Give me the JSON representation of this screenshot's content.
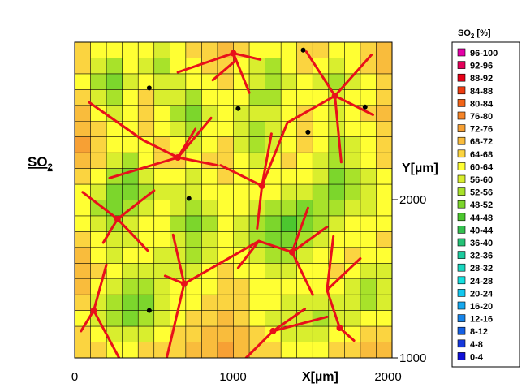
{
  "chart_data": {
    "type": "heatmap",
    "quantity_label": "SO",
    "quantity_subscript": "2",
    "xlabel": "X[µm]",
    "ylabel": "Y[µm]",
    "xlim": [
      0,
      2000
    ],
    "ylim": [
      1000,
      3000
    ],
    "x_ticks": [
      "0",
      "1000",
      "2000"
    ],
    "y_ticks": [
      "2000",
      "1000"
    ],
    "legend_title_prefix": "SO",
    "legend_title_sub": "2",
    "legend_title_unit": " [%]",
    "legend": [
      {
        "label": "96-100",
        "color": "#e400a8"
      },
      {
        "label": "92-96",
        "color": "#e4005a"
      },
      {
        "label": "88-92",
        "color": "#e80018"
      },
      {
        "label": "84-88",
        "color": "#ee3c10"
      },
      {
        "label": "80-84",
        "color": "#f26418"
      },
      {
        "label": "76-80",
        "color": "#f58428"
      },
      {
        "label": "72-76",
        "color": "#f7a034"
      },
      {
        "label": "68-72",
        "color": "#f9bc3c"
      },
      {
        "label": "64-68",
        "color": "#fbd440"
      },
      {
        "label": "60-64",
        "color": "#ffff33"
      },
      {
        "label": "56-60",
        "color": "#d9ee2e"
      },
      {
        "label": "52-56",
        "color": "#a8e22a"
      },
      {
        "label": "48-52",
        "color": "#7cd62c"
      },
      {
        "label": "44-48",
        "color": "#4cc72f"
      },
      {
        "label": "40-44",
        "color": "#33c04f"
      },
      {
        "label": "36-40",
        "color": "#24c276"
      },
      {
        "label": "32-36",
        "color": "#1ccb9e"
      },
      {
        "label": "28-32",
        "color": "#19d7c0"
      },
      {
        "label": "24-28",
        "color": "#14e0e0"
      },
      {
        "label": "20-24",
        "color": "#13c8ef"
      },
      {
        "label": "16-20",
        "color": "#16a8ef"
      },
      {
        "label": "12-16",
        "color": "#1684ea"
      },
      {
        "label": "8-12",
        "color": "#1660e4"
      },
      {
        "label": "4-8",
        "color": "#1638dc"
      },
      {
        "label": "0-4",
        "color": "#1010d8"
      }
    ],
    "grid_x_count": 20,
    "grid_y_count": 20,
    "grid_values": [
      [
        66,
        62,
        60,
        63,
        61,
        58,
        62,
        64,
        66,
        69,
        66,
        62,
        60,
        62,
        66,
        64,
        61,
        63,
        66,
        70
      ],
      [
        64,
        58,
        54,
        60,
        58,
        55,
        60,
        62,
        64,
        66,
        63,
        58,
        55,
        60,
        64,
        60,
        57,
        61,
        64,
        68
      ],
      [
        62,
        55,
        50,
        58,
        60,
        56,
        58,
        60,
        62,
        64,
        62,
        56,
        52,
        58,
        61,
        57,
        53,
        58,
        62,
        66
      ],
      [
        64,
        58,
        54,
        60,
        64,
        58,
        56,
        55,
        60,
        62,
        60,
        55,
        54,
        60,
        63,
        60,
        56,
        60,
        63,
        67
      ],
      [
        68,
        62,
        58,
        62,
        66,
        60,
        54,
        50,
        56,
        60,
        58,
        56,
        58,
        62,
        65,
        63,
        58,
        62,
        64,
        68
      ],
      [
        70,
        64,
        60,
        63,
        64,
        62,
        58,
        55,
        60,
        62,
        56,
        52,
        56,
        60,
        64,
        62,
        56,
        60,
        62,
        66
      ],
      [
        72,
        66,
        62,
        60,
        62,
        64,
        62,
        58,
        62,
        64,
        58,
        54,
        58,
        62,
        64,
        60,
        54,
        58,
        62,
        65
      ],
      [
        70,
        64,
        58,
        55,
        60,
        66,
        64,
        60,
        64,
        66,
        62,
        58,
        60,
        64,
        62,
        58,
        52,
        56,
        60,
        64
      ],
      [
        66,
        60,
        54,
        50,
        56,
        62,
        62,
        58,
        62,
        64,
        62,
        60,
        62,
        62,
        60,
        56,
        50,
        54,
        58,
        62
      ],
      [
        62,
        56,
        50,
        48,
        54,
        58,
        58,
        56,
        60,
        62,
        62,
        60,
        60,
        58,
        56,
        54,
        50,
        52,
        56,
        60
      ],
      [
        60,
        54,
        50,
        52,
        58,
        60,
        56,
        52,
        58,
        62,
        60,
        56,
        54,
        52,
        50,
        52,
        54,
        56,
        58,
        62
      ],
      [
        62,
        56,
        54,
        56,
        62,
        62,
        54,
        48,
        54,
        60,
        58,
        52,
        48,
        46,
        48,
        54,
        58,
        60,
        60,
        62
      ],
      [
        66,
        60,
        56,
        58,
        62,
        60,
        56,
        52,
        56,
        60,
        58,
        54,
        50,
        48,
        52,
        58,
        60,
        62,
        62,
        64
      ],
      [
        68,
        62,
        58,
        60,
        60,
        58,
        56,
        54,
        58,
        62,
        60,
        56,
        54,
        54,
        56,
        60,
        62,
        64,
        62,
        62
      ],
      [
        70,
        64,
        60,
        58,
        56,
        56,
        58,
        58,
        60,
        64,
        62,
        60,
        58,
        58,
        60,
        62,
        64,
        62,
        58,
        58
      ],
      [
        68,
        62,
        56,
        52,
        52,
        56,
        60,
        60,
        62,
        66,
        64,
        62,
        60,
        60,
        62,
        60,
        60,
        58,
        54,
        56
      ],
      [
        64,
        58,
        52,
        48,
        50,
        56,
        60,
        62,
        64,
        66,
        64,
        62,
        60,
        58,
        58,
        56,
        56,
        56,
        54,
        58
      ],
      [
        62,
        56,
        52,
        50,
        54,
        58,
        62,
        64,
        66,
        68,
        66,
        62,
        58,
        56,
        56,
        54,
        56,
        58,
        60,
        62
      ],
      [
        64,
        60,
        56,
        56,
        58,
        62,
        64,
        66,
        68,
        70,
        68,
        64,
        60,
        58,
        58,
        58,
        60,
        62,
        64,
        66
      ],
      [
        66,
        64,
        62,
        62,
        64,
        66,
        66,
        68,
        70,
        72,
        70,
        66,
        64,
        62,
        62,
        62,
        64,
        66,
        68,
        70
      ]
    ],
    "grain_boundaries": [
      [
        [
          650,
          2810
        ],
        [
          1000,
          2930
        ],
        [
          1010,
          2880
        ],
        [
          870,
          2760
        ]
      ],
      [
        [
          1000,
          2930
        ],
        [
          1170,
          2890
        ]
      ],
      [
        [
          1000,
          2930
        ],
        [
          1100,
          2680
        ]
      ],
      [
        [
          90,
          2620
        ],
        [
          430,
          2380
        ],
        [
          650,
          2270
        ],
        [
          860,
          2520
        ]
      ],
      [
        [
          650,
          2270
        ],
        [
          220,
          2140
        ]
      ],
      [
        [
          650,
          2270
        ],
        [
          900,
          2220
        ]
      ],
      [
        [
          650,
          2270
        ],
        [
          760,
          2450
        ]
      ],
      [
        [
          1180,
          2090
        ],
        [
          1340,
          2490
        ]
      ],
      [
        [
          1180,
          2090
        ],
        [
          920,
          2220
        ]
      ],
      [
        [
          1180,
          2090
        ],
        [
          1150,
          1820
        ]
      ],
      [
        [
          1180,
          2090
        ],
        [
          1240,
          2420
        ]
      ],
      [
        [
          1340,
          2490
        ],
        [
          1640,
          2660
        ]
      ],
      [
        [
          1640,
          2660
        ],
        [
          1870,
          2920
        ]
      ],
      [
        [
          1640,
          2660
        ],
        [
          1880,
          2540
        ]
      ],
      [
        [
          1640,
          2660
        ],
        [
          1680,
          2240
        ]
      ],
      [
        [
          1640,
          2660
        ],
        [
          1460,
          2940
        ]
      ],
      [
        [
          270,
          1880
        ],
        [
          460,
          1680
        ]
      ],
      [
        [
          270,
          1880
        ],
        [
          50,
          2050
        ]
      ],
      [
        [
          270,
          1880
        ],
        [
          180,
          1730
        ]
      ],
      [
        [
          270,
          1880
        ],
        [
          500,
          2060
        ]
      ],
      [
        [
          1370,
          1670
        ],
        [
          1590,
          1830
        ]
      ],
      [
        [
          1370,
          1670
        ],
        [
          1500,
          1400
        ]
      ],
      [
        [
          1370,
          1670
        ],
        [
          1160,
          1740
        ]
      ],
      [
        [
          1370,
          1670
        ],
        [
          1470,
          1950
        ]
      ],
      [
        [
          1160,
          1740
        ],
        [
          690,
          1470
        ]
      ],
      [
        [
          1160,
          1740
        ],
        [
          1030,
          1570
        ]
      ],
      [
        [
          690,
          1470
        ],
        [
          620,
          1780
        ]
      ],
      [
        [
          690,
          1470
        ],
        [
          580,
          1000
        ]
      ],
      [
        [
          690,
          1470
        ],
        [
          570,
          1520
        ]
      ],
      [
        [
          120,
          1300
        ],
        [
          200,
          1590
        ]
      ],
      [
        [
          120,
          1300
        ],
        [
          280,
          1000
        ]
      ],
      [
        [
          120,
          1300
        ],
        [
          40,
          1170
        ]
      ],
      [
        [
          1250,
          1170
        ],
        [
          1450,
          1310
        ]
      ],
      [
        [
          1250,
          1170
        ],
        [
          1080,
          1000
        ]
      ],
      [
        [
          1250,
          1170
        ],
        [
          1590,
          1260
        ]
      ],
      [
        [
          1670,
          1190
        ],
        [
          1590,
          1430
        ]
      ],
      [
        [
          1670,
          1190
        ],
        [
          1760,
          1110
        ]
      ],
      [
        [
          1590,
          1430
        ],
        [
          1800,
          1630
        ]
      ],
      [
        [
          1590,
          1430
        ],
        [
          1630,
          1770
        ]
      ]
    ],
    "grain_nodes": [
      [
        1000,
        2930
      ],
      [
        650,
        2270
      ],
      [
        1180,
        2090
      ],
      [
        1640,
        2660
      ],
      [
        270,
        1880
      ],
      [
        1370,
        1670
      ],
      [
        690,
        1470
      ],
      [
        120,
        1300
      ],
      [
        1250,
        1170
      ],
      [
        1670,
        1190
      ]
    ],
    "sample_points": [
      [
        1440,
        2950
      ],
      [
        470,
        2710
      ],
      [
        1030,
        2580
      ],
      [
        1830,
        2590
      ],
      [
        1470,
        2430
      ],
      [
        720,
        2010
      ],
      [
        470,
        1300
      ]
    ]
  }
}
